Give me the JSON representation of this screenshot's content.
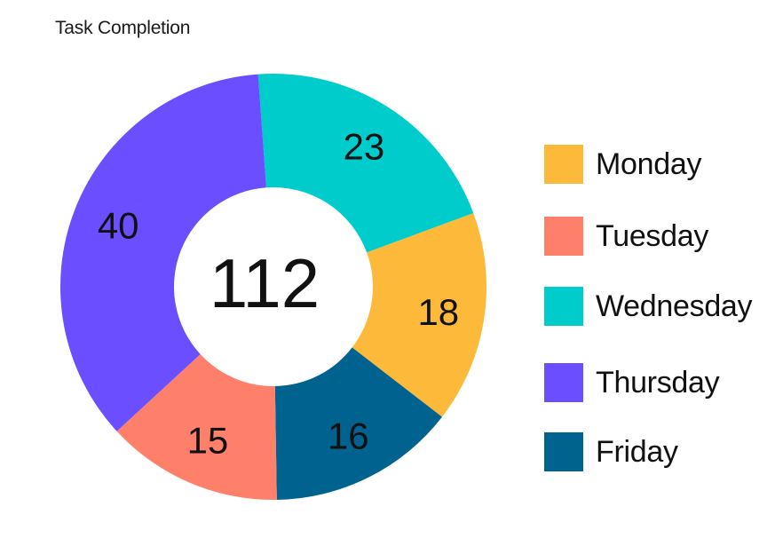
{
  "chart_data": {
    "type": "pie",
    "title": "Task Completion",
    "center_total": "112",
    "categories": [
      "Monday",
      "Tuesday",
      "Wednesday",
      "Thursday",
      "Friday"
    ],
    "values": [
      18,
      15,
      23,
      40,
      16
    ],
    "colors": [
      "#FDB93A",
      "#FE806A",
      "#00CCCC",
      "#6B4EFF",
      "#00628F"
    ],
    "legend": "right"
  }
}
